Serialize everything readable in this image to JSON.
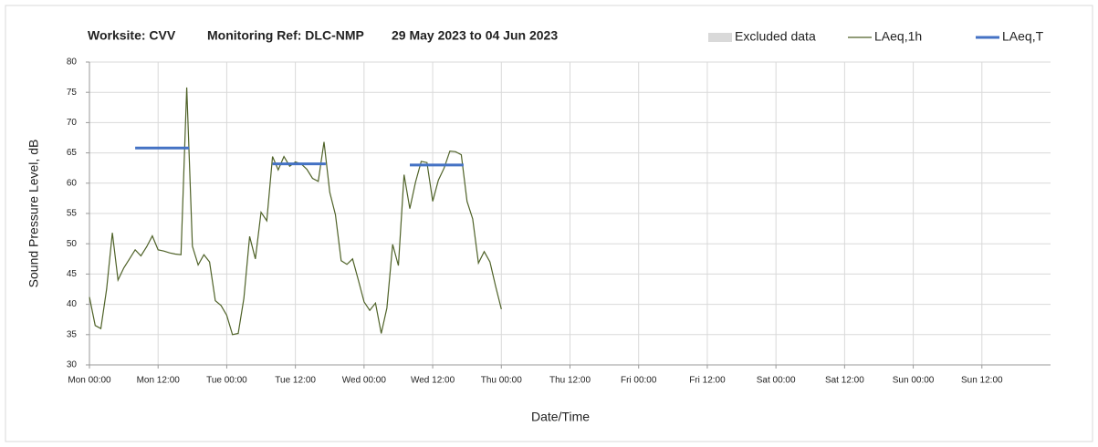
{
  "chart_data": {
    "type": "line",
    "title": [
      "Worksite: CVV",
      "Monitoring Ref: DLC-NMP",
      "29 May 2023 to 04 Jun 2023"
    ],
    "xlabel": "Date/Time",
    "ylabel": "Sound Pressure Level, dB",
    "xlim": [
      0,
      168
    ],
    "xticks": [
      {
        "value": 0,
        "label": "Mon 00:00"
      },
      {
        "value": 12,
        "label": "Mon 12:00"
      },
      {
        "value": 24,
        "label": "Tue 00:00"
      },
      {
        "value": 36,
        "label": "Tue 12:00"
      },
      {
        "value": 48,
        "label": "Wed 00:00"
      },
      {
        "value": 60,
        "label": "Wed 12:00"
      },
      {
        "value": 72,
        "label": "Thu 00:00"
      },
      {
        "value": 84,
        "label": "Thu 12:00"
      },
      {
        "value": 96,
        "label": "Fri 00:00"
      },
      {
        "value": 108,
        "label": "Fri 12:00"
      },
      {
        "value": 120,
        "label": "Sat 00:00"
      },
      {
        "value": 132,
        "label": "Sat 12:00"
      },
      {
        "value": 144,
        "label": "Sun 00:00"
      },
      {
        "value": 156,
        "label": "Sun 12:00"
      }
    ],
    "ylim": [
      30,
      80
    ],
    "yticks": [
      30,
      35,
      40,
      45,
      50,
      55,
      60,
      65,
      70,
      75,
      80
    ],
    "grid": true,
    "legend": "top-right",
    "series": [
      {
        "name": "Excluded data",
        "color": "#d9d9d9",
        "x": [],
        "values": []
      },
      {
        "name": "LAeq,1h",
        "color": "#4f6228",
        "x": [
          0,
          1,
          2,
          3,
          4,
          5,
          6,
          7,
          8,
          9,
          10,
          11,
          12,
          13,
          14,
          15,
          16,
          17,
          18,
          19,
          20,
          21,
          22,
          23,
          24,
          25,
          26,
          27,
          28,
          29,
          30,
          31,
          32,
          33,
          34,
          35,
          36,
          37,
          38,
          39,
          40,
          41,
          42,
          43,
          44,
          45,
          46,
          47,
          48,
          49,
          50,
          51,
          52,
          53,
          54,
          55,
          56,
          57,
          58,
          59,
          60,
          61,
          62,
          63,
          64,
          65,
          66,
          67,
          68,
          69,
          70,
          71,
          72
        ],
        "values": [
          41.2,
          36.5,
          36,
          42.5,
          51.8,
          44,
          46,
          47.5,
          49,
          48,
          49.5,
          51.3,
          49,
          48.8,
          48.5,
          48.3,
          48.2,
          75.8,
          49.6,
          46.5,
          48.2,
          47,
          40.6,
          39.8,
          38.2,
          35,
          35.2,
          41,
          51.2,
          47.5,
          55.2,
          53.8,
          64.4,
          62.2,
          64.4,
          62.8,
          63.5,
          63.2,
          62.3,
          60.8,
          60.3,
          66.8,
          58.5,
          54.8,
          47.2,
          46.6,
          47.5,
          44,
          40.4,
          39,
          40.2,
          35.2,
          39.4,
          49.9,
          46.4,
          61.4,
          55.8,
          60.2,
          63.6,
          63.4,
          57,
          60.5,
          62.5,
          65.3,
          65.2,
          64.7,
          57,
          54.1,
          46.8,
          48.7,
          47,
          43,
          39.2
        ]
      },
      {
        "name": "LAeq,T",
        "color": "#4472c4",
        "x": [
          8,
          17.4,
          24,
          32,
          41.3,
          48,
          56,
          65.4
        ],
        "values": [
          65.8,
          65.8,
          null,
          63.2,
          63.2,
          null,
          63,
          63
        ]
      }
    ]
  }
}
